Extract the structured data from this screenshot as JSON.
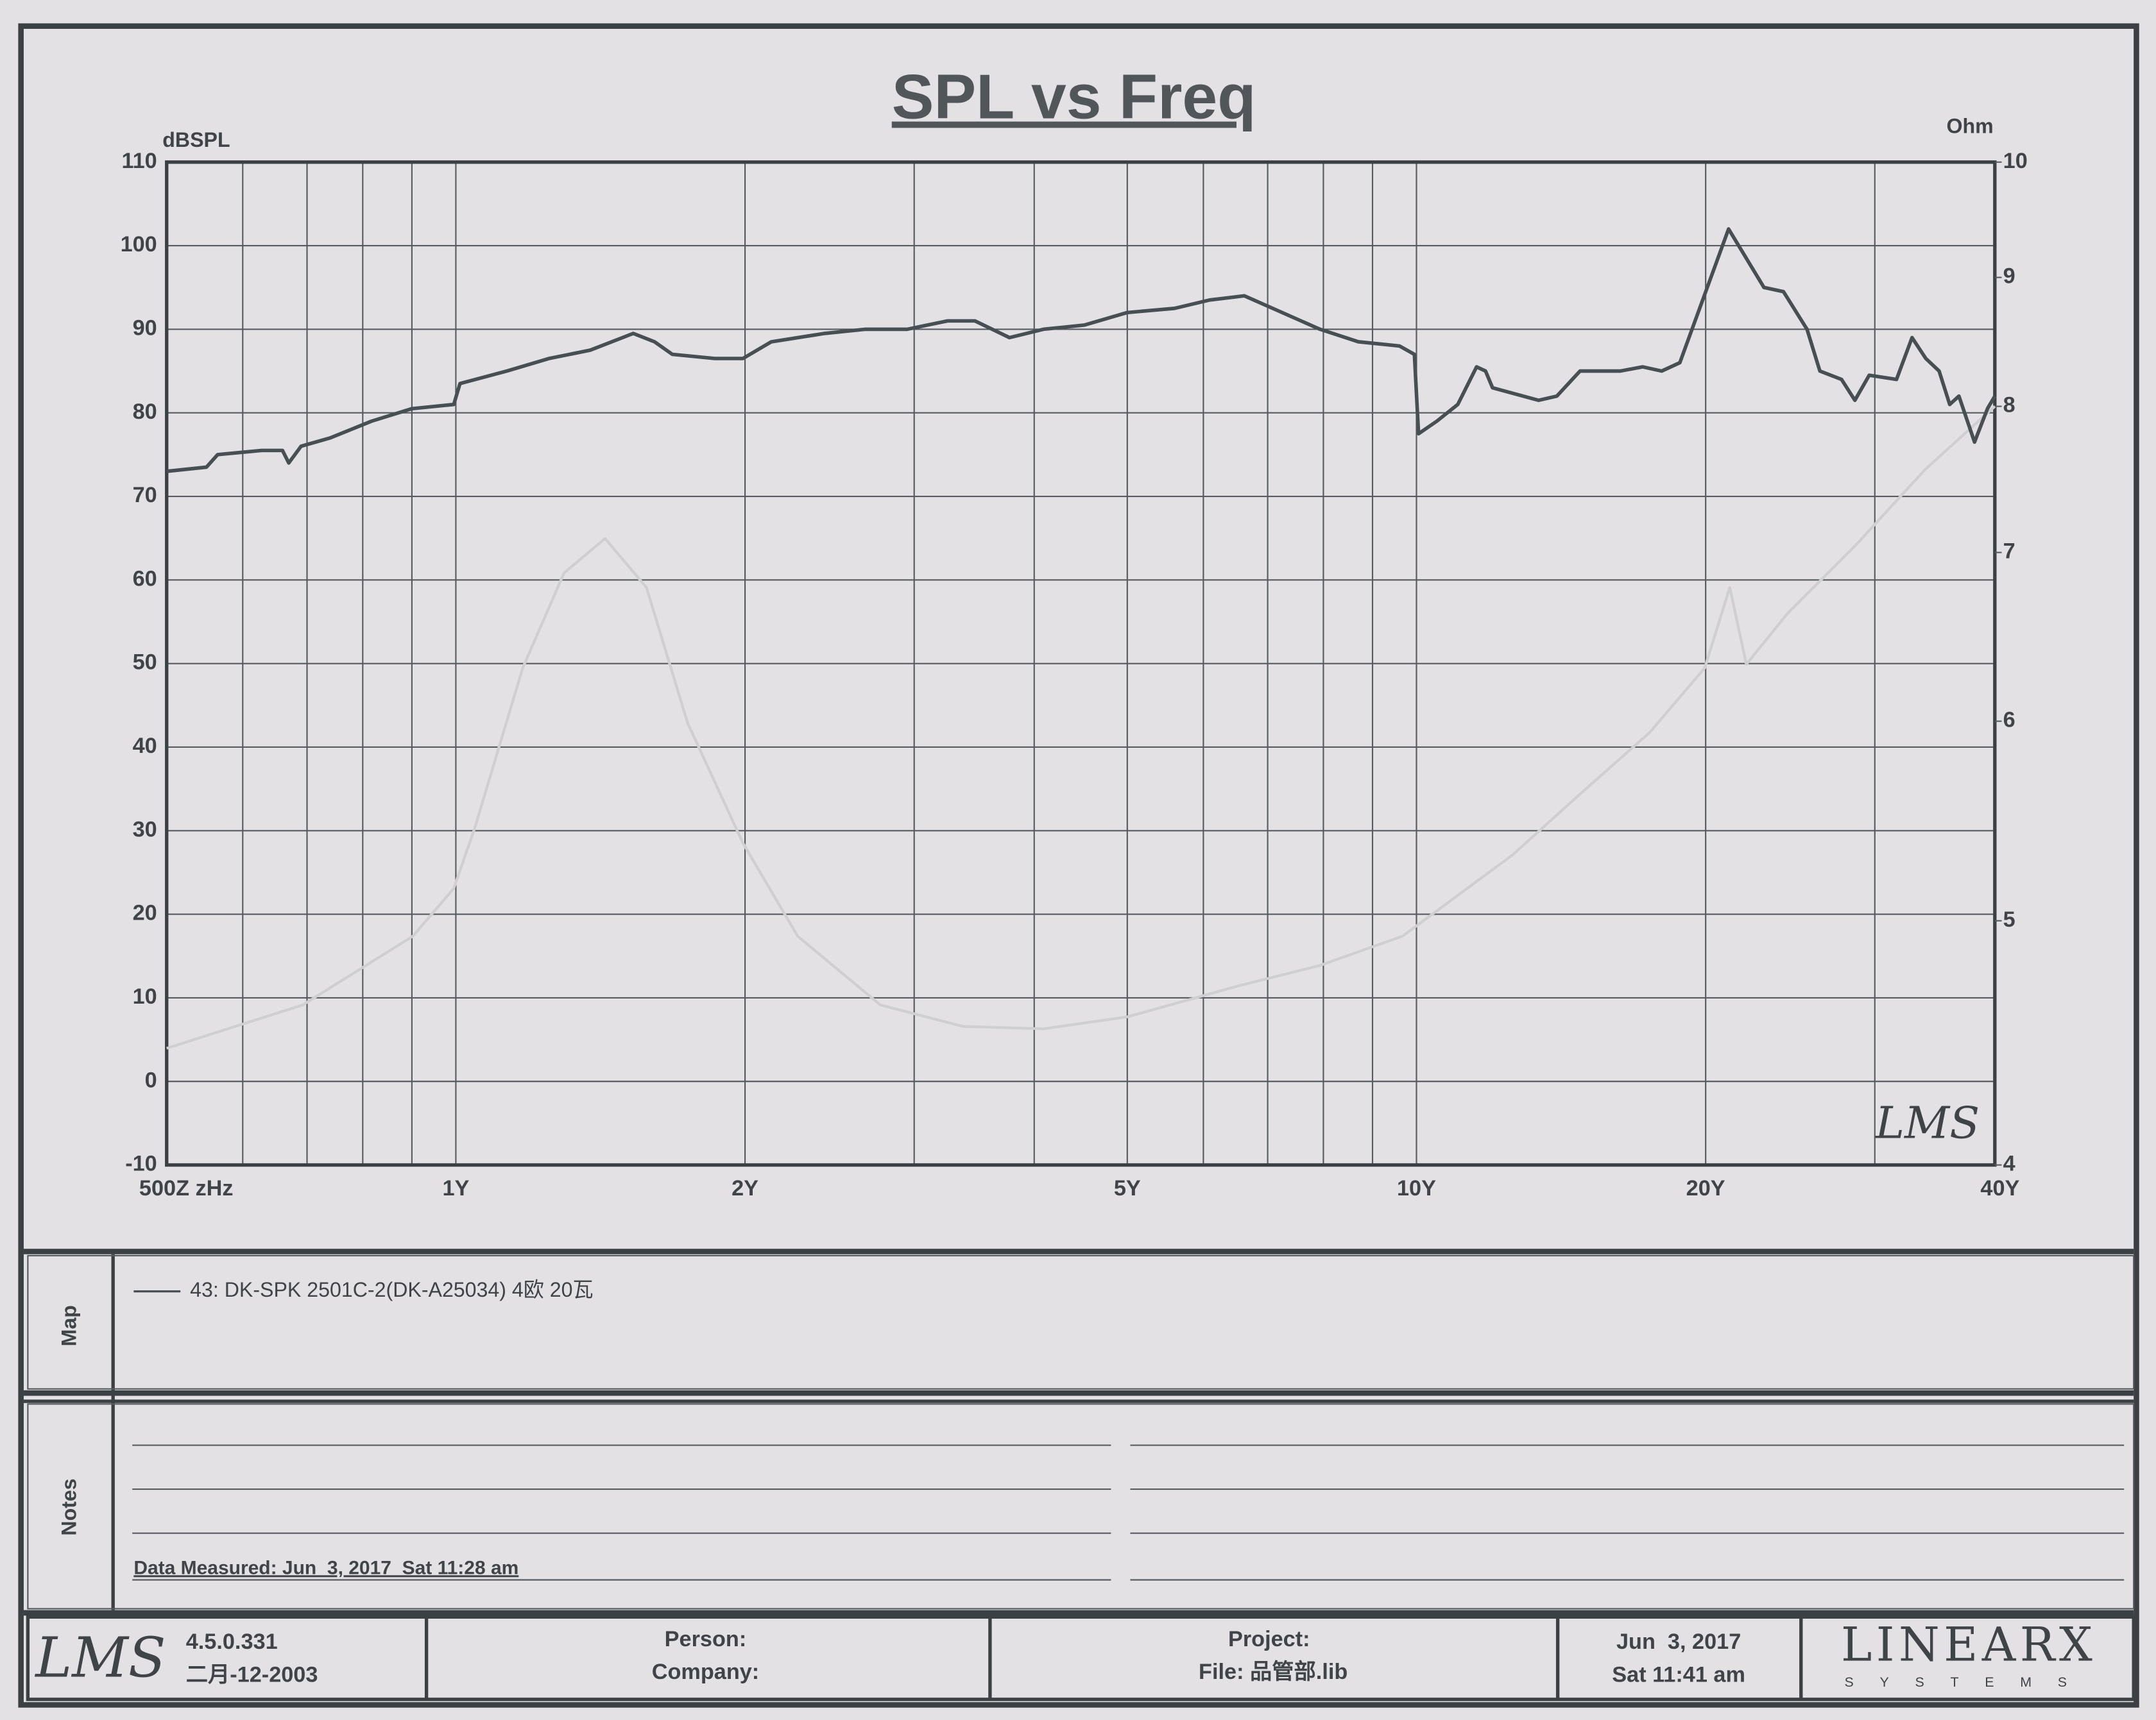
{
  "chart_data": {
    "type": "line",
    "title": "SPL vs Freq",
    "ylabel": "dBSPL",
    "y2label": "Ohm",
    "logo": "LMS",
    "xscale": "log",
    "y2scale": "log",
    "grid": true,
    "xlim": [
      500,
      40000
    ],
    "xticks": [
      {
        "value": 500,
        "label": "500Z zHz"
      },
      {
        "value": 1000,
        "label": "1Y"
      },
      {
        "value": 2000,
        "label": "2Y"
      },
      {
        "value": 5000,
        "label": "5Y"
      },
      {
        "value": 10000,
        "label": "10Y"
      },
      {
        "value": 20000,
        "label": "20Y"
      },
      {
        "value": 40000,
        "label": "40Y"
      }
    ],
    "x_minor_ticks": [
      600,
      700,
      800,
      900,
      3000,
      4000,
      6000,
      7000,
      8000,
      9000,
      30000
    ],
    "ylim": [
      -10,
      110
    ],
    "yticks": [
      -10,
      0,
      10,
      20,
      30,
      40,
      50,
      60,
      70,
      80,
      90,
      100,
      110
    ],
    "y2lim": [
      4,
      10
    ],
    "y2ticks": [
      4,
      5,
      6,
      7,
      8,
      9,
      10
    ],
    "series": [
      {
        "name": "43: DK-SPK 2501C-2(DK-A25034) 4欧 20瓦",
        "color": "#464f53",
        "x": [
          500,
          550,
          565,
          628,
          660,
          670,
          690,
          740,
          817,
          900,
          995,
          1010,
          1130,
          1250,
          1380,
          1530,
          1610,
          1680,
          1860,
          1990,
          2130,
          2420,
          2670,
          2950,
          3250,
          3470,
          3770,
          4090,
          4510,
          5000,
          5600,
          6090,
          6620,
          7935,
          8700,
          9600,
          9950,
          10050,
          10500,
          11040,
          11550,
          11800,
          12000,
          13400,
          14000,
          14800,
          16300,
          17200,
          18000,
          18800,
          21130,
          23000,
          24100,
          25500,
          26300,
          27700,
          28600,
          29600,
          31600,
          32800,
          33900,
          35000,
          35900,
          36700,
          38100,
          39300,
          40000
        ],
        "values": [
          73,
          73.5,
          75,
          75.5,
          75.5,
          74,
          76,
          77,
          79,
          80.5,
          81,
          83.5,
          85,
          86.5,
          87.5,
          89.5,
          88.5,
          87,
          86.5,
          86.5,
          88.5,
          89.5,
          90,
          90,
          91,
          91,
          89,
          90,
          90.5,
          92,
          92.5,
          93.5,
          94,
          90,
          88.5,
          88,
          87,
          77.5,
          79,
          81,
          85.5,
          85,
          83,
          81.5,
          82,
          85,
          85,
          85.5,
          85,
          86,
          102,
          95,
          94.5,
          90,
          85,
          84,
          81.5,
          84.5,
          84,
          89,
          86.5,
          85,
          81,
          82,
          76.5,
          80.5,
          82
        ]
      },
      {
        "color": "#cfcfd1",
        "axis": "y2",
        "x": [
          500,
          693,
          902,
          995,
          1046,
          1174,
          1296,
          1430,
          1579,
          1743,
          1989,
          2269,
          2766,
          3370,
          4090,
          5003,
          6510,
          7935,
          9670,
          12590,
          14850,
          17500,
          19960,
          21190,
          22050,
          24330,
          28690,
          33830,
          40000
        ],
        "values": [
          4.45,
          4.63,
          4.93,
          5.15,
          5.44,
          6.3,
          6.87,
          7.09,
          6.78,
          5.99,
          5.37,
          4.93,
          4.63,
          4.54,
          4.53,
          4.58,
          4.71,
          4.8,
          4.93,
          5.31,
          5.62,
          5.94,
          6.3,
          6.78,
          6.32,
          6.62,
          7.05,
          7.55,
          8.0
        ]
      }
    ]
  },
  "map": {
    "label": "Map"
  },
  "notes": {
    "label": "Notes",
    "data_measured": "Data Measured: Jun  3, 2017  Sat 11:28 am"
  },
  "footer": {
    "logo": "LMS",
    "version": "4.5.0.331",
    "version_date": "二月-12-2003",
    "person": "Person:",
    "company": "Company:",
    "project": "Project:",
    "file": "File: 品管部.lib",
    "print_date": "Jun  3, 2017",
    "print_time": "Sat 11:41 am",
    "brand": "LINEARX",
    "brand_sub": "SYSTEMS"
  }
}
